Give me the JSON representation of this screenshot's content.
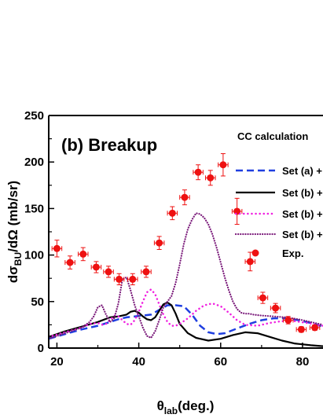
{
  "chart_data": {
    "type": "line",
    "title": "(b) Breakup",
    "xlabel": {
      "main": "θ",
      "sub": "lab",
      "rest": "(deg.)"
    },
    "ylabel": {
      "a": "dσ",
      "sub": "BU",
      "b": "/dΩ (mb/sr)"
    },
    "xlim": [
      18,
      85
    ],
    "ylim": [
      0,
      250
    ],
    "xticks": [
      20,
      40,
      60,
      80
    ],
    "yticks": [
      0,
      50,
      100,
      150,
      200,
      250
    ],
    "legend_title": "CC calculation",
    "series": [
      {
        "name": "Set (a) +",
        "style": "dash",
        "color": "#1f3fe0",
        "x": [
          18,
          22,
          26,
          30,
          33,
          35,
          37,
          39,
          41,
          43,
          45,
          47,
          49,
          51,
          53,
          55,
          57,
          59,
          61,
          64,
          67,
          70,
          73,
          76,
          79,
          82,
          85
        ],
        "y": [
          10,
          15,
          20,
          24,
          28,
          31,
          33,
          34,
          35,
          36,
          41,
          46,
          46,
          45,
          36,
          24,
          17,
          15,
          16,
          21,
          26,
          30,
          32,
          32,
          30,
          27,
          23
        ]
      },
      {
        "name": "Set (b) +",
        "style": "solid",
        "color": "#000000",
        "x": [
          18,
          22,
          26,
          30,
          33,
          35,
          37,
          38,
          39,
          40,
          41,
          42,
          43,
          44,
          45,
          46,
          47,
          48,
          49,
          50,
          52,
          54,
          57,
          60,
          63,
          66,
          69,
          72,
          75,
          78,
          82,
          85
        ],
        "y": [
          12,
          18,
          23,
          28,
          33,
          34,
          36,
          39,
          40,
          38,
          34,
          31,
          30,
          33,
          40,
          47,
          49,
          46,
          37,
          26,
          16,
          11,
          8,
          10,
          14,
          17,
          16,
          12,
          8,
          5,
          3,
          2
        ]
      },
      {
        "name": "Set (b) +",
        "style": "dot",
        "color": "#f020e0",
        "x": [
          18,
          22,
          26,
          28,
          30,
          31,
          32,
          33,
          34,
          35,
          36,
          37,
          38,
          39,
          40,
          41,
          42,
          43,
          44,
          45,
          46,
          47,
          48,
          49,
          50,
          52,
          54,
          56,
          58,
          60,
          62,
          64,
          66,
          69,
          72,
          75,
          78,
          81,
          85
        ],
        "y": [
          12,
          17,
          22,
          26,
          27,
          25,
          26,
          30,
          35,
          34,
          30,
          26,
          25,
          30,
          39,
          50,
          60,
          63,
          58,
          47,
          36,
          28,
          24,
          24,
          26,
          32,
          40,
          46,
          48,
          45,
          38,
          30,
          25,
          24,
          27,
          29,
          29,
          27,
          24
        ]
      },
      {
        "name": "Set (b) +",
        "style": "dotted-dense",
        "color": "#7a1a7a",
        "x": [
          18,
          22,
          26,
          28,
          29,
          30,
          31,
          32,
          33,
          34,
          35,
          36,
          37,
          38,
          39,
          40,
          41,
          42,
          43,
          44,
          45,
          46,
          47,
          48,
          49,
          50,
          51,
          52,
          53,
          54,
          55,
          56,
          57,
          58,
          59,
          60,
          61,
          62,
          63,
          64,
          65,
          66,
          67,
          68,
          70,
          73,
          76,
          79,
          82,
          85
        ],
        "y": [
          10,
          16,
          22,
          28,
          34,
          44,
          46,
          36,
          28,
          32,
          48,
          74,
          76,
          62,
          46,
          34,
          22,
          13,
          11,
          18,
          30,
          44,
          50,
          56,
          70,
          90,
          112,
          128,
          138,
          145,
          144,
          140,
          133,
          122,
          108,
          92,
          76,
          62,
          50,
          42,
          38,
          37,
          37,
          36,
          35,
          34,
          33,
          31,
          28,
          25
        ]
      }
    ],
    "exp": {
      "name": "Exp.",
      "color": "#ee1111",
      "points": [
        {
          "x": 20.0,
          "y": 107,
          "xerr": 1.2,
          "yerr": 9
        },
        {
          "x": 23.2,
          "y": 92,
          "xerr": 1.2,
          "yerr": 7
        },
        {
          "x": 26.4,
          "y": 101,
          "xerr": 1.2,
          "yerr": 7
        },
        {
          "x": 29.6,
          "y": 87,
          "xerr": 1.2,
          "yerr": 6
        },
        {
          "x": 32.6,
          "y": 82,
          "xerr": 1.2,
          "yerr": 6
        },
        {
          "x": 35.2,
          "y": 74,
          "xerr": 1.2,
          "yerr": 6
        },
        {
          "x": 38.5,
          "y": 74,
          "xerr": 1.2,
          "yerr": 6
        },
        {
          "x": 41.8,
          "y": 82,
          "xerr": 1.2,
          "yerr": 6
        },
        {
          "x": 45.0,
          "y": 113,
          "xerr": 1.2,
          "yerr": 7
        },
        {
          "x": 48.2,
          "y": 145,
          "xerr": 1.2,
          "yerr": 7
        },
        {
          "x": 51.2,
          "y": 162,
          "xerr": 1.2,
          "yerr": 8
        },
        {
          "x": 54.5,
          "y": 189,
          "xerr": 1.2,
          "yerr": 8
        },
        {
          "x": 57.5,
          "y": 183,
          "xerr": 1.2,
          "yerr": 8
        },
        {
          "x": 60.6,
          "y": 197,
          "xerr": 1.2,
          "yerr": 12
        },
        {
          "x": 64.0,
          "y": 147,
          "xerr": 1.2,
          "yerr": 14
        },
        {
          "x": 67.2,
          "y": 93,
          "xerr": 1.2,
          "yerr": 10
        },
        {
          "x": 70.3,
          "y": 54,
          "xerr": 1.2,
          "yerr": 6
        },
        {
          "x": 73.4,
          "y": 43,
          "xerr": 1.2,
          "yerr": 5
        },
        {
          "x": 76.5,
          "y": 30,
          "xerr": 1.2,
          "yerr": 4
        },
        {
          "x": 79.7,
          "y": 20,
          "xerr": 1.2,
          "yerr": 3
        },
        {
          "x": 83.0,
          "y": 22,
          "xerr": 1.2,
          "yerr": 3
        }
      ]
    }
  }
}
